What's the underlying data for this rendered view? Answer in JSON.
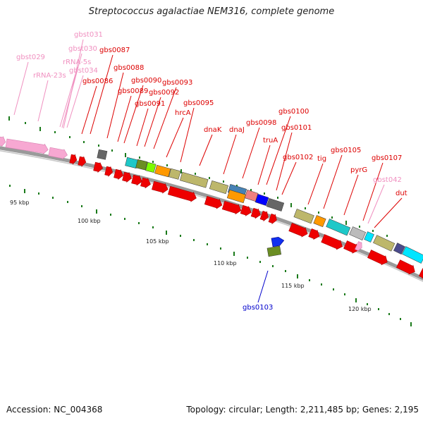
{
  "title": "Streptococcus agalactiae NEM316, complete genome",
  "footer": {
    "accession": "Accession: NC_004368",
    "summary": "Topology: circular; Length: 2,211,485 bp; Genes: 2,195"
  },
  "colors": {
    "gene_label": "#dd0000",
    "rna_label": "#f090c0",
    "selected_label": "#0000cc",
    "gene_arrow": "#ee0000",
    "rna_arrow": "#f7a8d2",
    "tick": "#1a7a1a",
    "backbone": "#888888"
  },
  "scale_labels": [
    "95 kbp",
    "100 kbp",
    "105 kbp",
    "110 kbp",
    "115 kbp",
    "120 kbp"
  ],
  "labels": [
    {
      "text": "gbst031",
      "kind": "rna"
    },
    {
      "text": "gbst030",
      "kind": "rna"
    },
    {
      "text": "gbst029",
      "kind": "rna"
    },
    {
      "text": "rRNA-5s",
      "kind": "rna"
    },
    {
      "text": "gbst034",
      "kind": "rna"
    },
    {
      "text": "rRNA-23s",
      "kind": "rna"
    },
    {
      "text": "gbs0087",
      "kind": "gene"
    },
    {
      "text": "gbs0088",
      "kind": "gene"
    },
    {
      "text": "gbs0086",
      "kind": "gene"
    },
    {
      "text": "gbs0090",
      "kind": "gene"
    },
    {
      "text": "gbs0093",
      "kind": "gene"
    },
    {
      "text": "gbs0089",
      "kind": "gene"
    },
    {
      "text": "gbs0092",
      "kind": "gene"
    },
    {
      "text": "gbs0091",
      "kind": "gene"
    },
    {
      "text": "gbs0095",
      "kind": "gene"
    },
    {
      "text": "hrcA",
      "kind": "gene"
    },
    {
      "text": "dnaK",
      "kind": "gene"
    },
    {
      "text": "dnaJ",
      "kind": "gene"
    },
    {
      "text": "gbs0098",
      "kind": "gene"
    },
    {
      "text": "gbs0100",
      "kind": "gene"
    },
    {
      "text": "gbs0101",
      "kind": "gene"
    },
    {
      "text": "truA",
      "kind": "gene"
    },
    {
      "text": "gbs0102",
      "kind": "gene"
    },
    {
      "text": "tig",
      "kind": "gene"
    },
    {
      "text": "gbs0105",
      "kind": "gene"
    },
    {
      "text": "gbs0107",
      "kind": "gene"
    },
    {
      "text": "pyrG",
      "kind": "gene"
    },
    {
      "text": "gbst042",
      "kind": "rna"
    },
    {
      "text": "dut",
      "kind": "gene"
    },
    {
      "text": "gbs0103",
      "kind": "selected"
    }
  ],
  "cog_boxes": [
    {
      "color": "#1ec8c8",
      "name": "cyan"
    },
    {
      "color": "#6b8e23",
      "name": "olive-green"
    },
    {
      "color": "#7cfc00",
      "name": "lime"
    },
    {
      "color": "#ff9900",
      "name": "orange"
    },
    {
      "color": "#bdb76b",
      "name": "khaki"
    },
    {
      "color": "#4682b4",
      "name": "steel-blue"
    },
    {
      "color": "#f08080",
      "name": "salmon"
    },
    {
      "color": "#0000ff",
      "name": "blue"
    },
    {
      "color": "#666666",
      "name": "grey"
    },
    {
      "color": "#bbbbbb",
      "name": "light-grey"
    },
    {
      "color": "#00e5ff",
      "name": "bright-cyan"
    },
    {
      "color": "#4b4b8c",
      "name": "slate"
    }
  ]
}
